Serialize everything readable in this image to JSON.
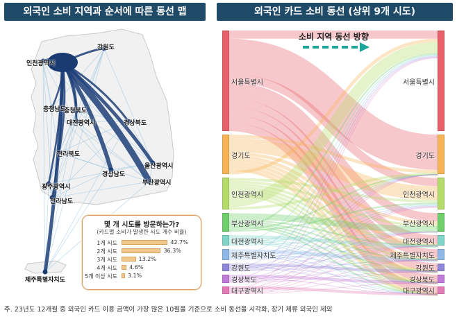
{
  "left_panel": {
    "title": "외국인 소비 지역과 순서에 따른 동선 맵",
    "region_labels": {
      "gangwon": "강원도",
      "incheon": "인천광역시",
      "chungnam": "충청남도",
      "chungbuk": "충청북도",
      "daejeon": "대전광역시",
      "gyeongbuk": "경상북도",
      "jeonbuk": "전라북도",
      "gwangju": "광주광역시",
      "jeonnam": "전라남도",
      "gyeongnam": "경상남도",
      "ulsan": "울산광역시",
      "busan": "부산광역시",
      "jeju": "제주특별자치도"
    },
    "inset": {
      "question": "몇 개 시도를 방문하는가?",
      "subtitle": "(카드별 소비가 발생한 시도 개수 비율)",
      "rows": [
        {
          "label": "1개 시도",
          "value": 42.7,
          "value_text": "42.7%"
        },
        {
          "label": "2개 시도",
          "value": 36.3,
          "value_text": "36.3%"
        },
        {
          "label": "3개 시도",
          "value": 13.2,
          "value_text": "13.2%"
        },
        {
          "label": "4개 시도",
          "value": 4.6,
          "value_text": "4.6%"
        },
        {
          "label": "5개 이상 시도",
          "value": 3.1,
          "value_text": "3.1%"
        }
      ]
    }
  },
  "right_panel": {
    "title": "외국인 카드 소비 동선 (상위 9개 시도)",
    "flow_direction_label": "소비 지역 동선 방향",
    "sources": [
      {
        "label": "서울특별시",
        "color": "#e8606a",
        "weight": 38
      },
      {
        "label": "경기도",
        "color": "#f6b457",
        "weight": 15
      },
      {
        "label": "인천광역시",
        "color": "#b4dc6a",
        "weight": 12
      },
      {
        "label": "부산광역시",
        "color": "#6fcf6a",
        "weight": 7
      },
      {
        "label": "대전광역시",
        "color": "#7fd6c8",
        "weight": 4
      },
      {
        "label": "제주특별자치도",
        "color": "#8fb8e8",
        "weight": 4
      },
      {
        "label": "강원도",
        "color": "#8e86d8",
        "weight": 3
      },
      {
        "label": "경상북도",
        "color": "#c07bd8",
        "weight": 3
      },
      {
        "label": "대구광역시",
        "color": "#e27bb8",
        "weight": 3
      }
    ],
    "targets": [
      {
        "label": "서울특별시",
        "color": "#e8606a",
        "weight": 38
      },
      {
        "label": "경기도",
        "color": "#f6b457",
        "weight": 15
      },
      {
        "label": "인천광역시",
        "color": "#b4dc6a",
        "weight": 12
      },
      {
        "label": "부산광역시",
        "color": "#6fcf6a",
        "weight": 7
      },
      {
        "label": "대전광역시",
        "color": "#7fd6c8",
        "weight": 4
      },
      {
        "label": "제주특별자치도",
        "color": "#8fb8e8",
        "weight": 4
      },
      {
        "label": "강원도",
        "color": "#8e86d8",
        "weight": 3
      },
      {
        "label": "경상북도",
        "color": "#c07bd8",
        "weight": 3
      },
      {
        "label": "대구광역시",
        "color": "#e27bb8",
        "weight": 3
      }
    ]
  },
  "footnote": "주. 23년도 12개월 중 외국인 카드 이용 금액이 가장 많은 10월을 기준으로 소비 동선을 시각화, 장기 체류 외국인 제외"
}
